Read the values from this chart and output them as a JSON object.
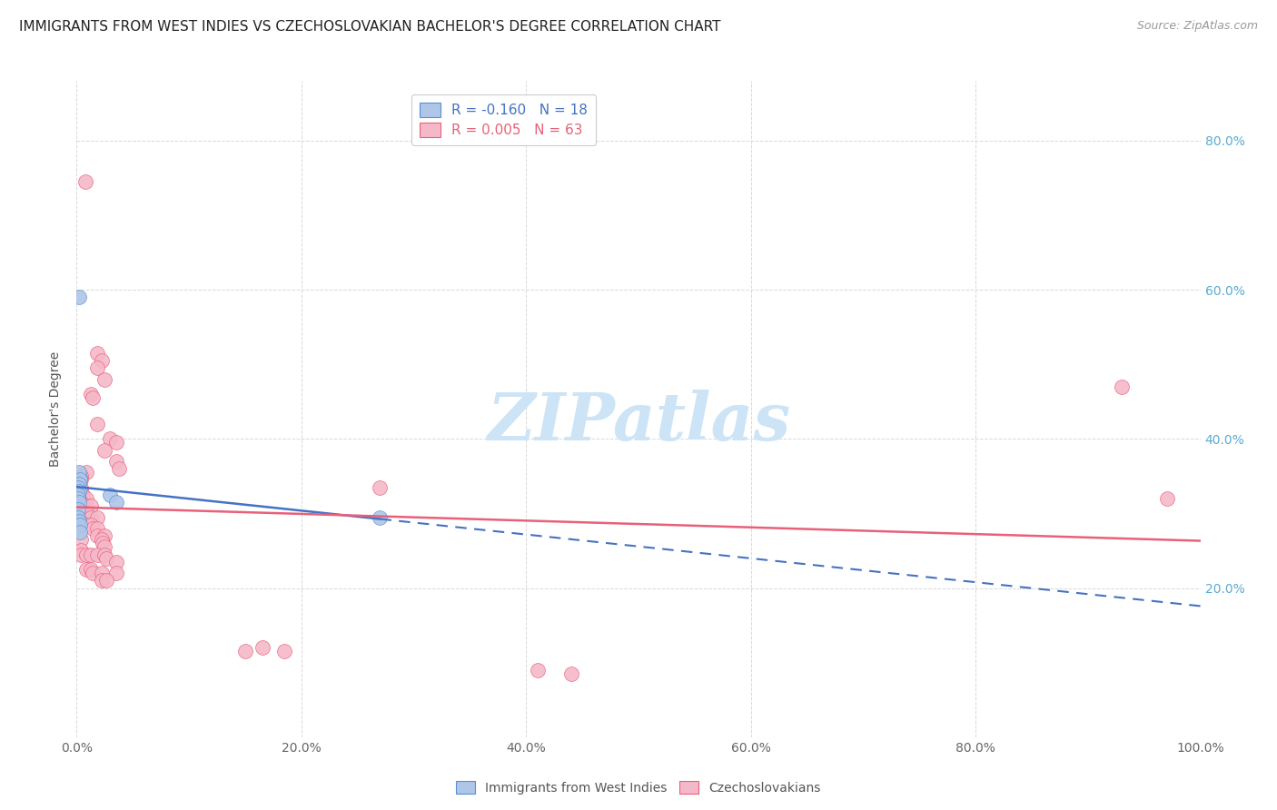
{
  "title": "IMMIGRANTS FROM WEST INDIES VS CZECHOSLOVAKIAN BACHELOR'S DEGREE CORRELATION CHART",
  "source": "Source: ZipAtlas.com",
  "ylabel": "Bachelor's Degree",
  "xlim": [
    0,
    1.0
  ],
  "ylim": [
    0,
    0.88
  ],
  "xtick_labels": [
    "0.0%",
    "20.0%",
    "40.0%",
    "60.0%",
    "80.0%",
    "100.0%"
  ],
  "xtick_vals": [
    0.0,
    0.2,
    0.4,
    0.6,
    0.8,
    1.0
  ],
  "ytick_vals": [
    0.0,
    0.2,
    0.4,
    0.6,
    0.8
  ],
  "ytick_labels_right": [
    "",
    "20.0%",
    "40.0%",
    "60.0%",
    "80.0%"
  ],
  "blue_R": "-0.160",
  "blue_N": "18",
  "pink_R": "0.005",
  "pink_N": "63",
  "blue_color": "#aec6e8",
  "pink_color": "#f5b8c8",
  "blue_edge_color": "#5b8fd4",
  "pink_edge_color": "#e8607a",
  "blue_line_color": "#4472c4",
  "pink_line_color": "#e8607a",
  "blue_dots": [
    [
      0.002,
      0.59
    ],
    [
      0.003,
      0.345
    ],
    [
      0.002,
      0.355
    ],
    [
      0.003,
      0.345
    ],
    [
      0.002,
      0.34
    ],
    [
      0.001,
      0.335
    ],
    [
      0.002,
      0.33
    ],
    [
      0.001,
      0.325
    ],
    [
      0.001,
      0.32
    ],
    [
      0.002,
      0.315
    ],
    [
      0.001,
      0.305
    ],
    [
      0.001,
      0.295
    ],
    [
      0.002,
      0.29
    ],
    [
      0.003,
      0.285
    ],
    [
      0.003,
      0.275
    ],
    [
      0.03,
      0.325
    ],
    [
      0.035,
      0.315
    ],
    [
      0.27,
      0.295
    ]
  ],
  "pink_dots": [
    [
      0.008,
      0.745
    ],
    [
      0.018,
      0.515
    ],
    [
      0.022,
      0.505
    ],
    [
      0.018,
      0.495
    ],
    [
      0.025,
      0.48
    ],
    [
      0.013,
      0.46
    ],
    [
      0.014,
      0.455
    ],
    [
      0.018,
      0.42
    ],
    [
      0.03,
      0.4
    ],
    [
      0.035,
      0.395
    ],
    [
      0.025,
      0.385
    ],
    [
      0.035,
      0.37
    ],
    [
      0.038,
      0.36
    ],
    [
      0.009,
      0.355
    ],
    [
      0.004,
      0.35
    ],
    [
      0.004,
      0.345
    ],
    [
      0.004,
      0.335
    ],
    [
      0.004,
      0.33
    ],
    [
      0.005,
      0.325
    ],
    [
      0.005,
      0.32
    ],
    [
      0.009,
      0.32
    ],
    [
      0.004,
      0.315
    ],
    [
      0.004,
      0.31
    ],
    [
      0.009,
      0.31
    ],
    [
      0.013,
      0.31
    ],
    [
      0.004,
      0.3
    ],
    [
      0.009,
      0.3
    ],
    [
      0.013,
      0.295
    ],
    [
      0.018,
      0.295
    ],
    [
      0.004,
      0.285
    ],
    [
      0.009,
      0.285
    ],
    [
      0.013,
      0.285
    ],
    [
      0.014,
      0.28
    ],
    [
      0.018,
      0.28
    ],
    [
      0.018,
      0.27
    ],
    [
      0.025,
      0.27
    ],
    [
      0.004,
      0.265
    ],
    [
      0.022,
      0.265
    ],
    [
      0.023,
      0.26
    ],
    [
      0.025,
      0.255
    ],
    [
      0.004,
      0.25
    ],
    [
      0.004,
      0.245
    ],
    [
      0.009,
      0.245
    ],
    [
      0.013,
      0.245
    ],
    [
      0.018,
      0.245
    ],
    [
      0.025,
      0.245
    ],
    [
      0.026,
      0.24
    ],
    [
      0.035,
      0.235
    ],
    [
      0.009,
      0.225
    ],
    [
      0.013,
      0.225
    ],
    [
      0.014,
      0.22
    ],
    [
      0.022,
      0.22
    ],
    [
      0.035,
      0.22
    ],
    [
      0.022,
      0.21
    ],
    [
      0.026,
      0.21
    ],
    [
      0.15,
      0.115
    ],
    [
      0.165,
      0.12
    ],
    [
      0.185,
      0.115
    ],
    [
      0.27,
      0.335
    ],
    [
      0.41,
      0.09
    ],
    [
      0.44,
      0.085
    ],
    [
      0.97,
      0.32
    ],
    [
      0.93,
      0.47
    ]
  ],
  "background_color": "#ffffff",
  "grid_color": "#d8d8d8",
  "title_fontsize": 11,
  "label_fontsize": 10,
  "tick_fontsize": 10,
  "legend_fontsize": 11,
  "source_fontsize": 9,
  "watermark_text": "ZIPatlas",
  "watermark_color": "#cce4f5",
  "legend_label_blue": "R = -0.160   N = 18",
  "legend_label_pink": "R = 0.005   N = 63",
  "bottom_legend_blue": "Immigrants from West Indies",
  "bottom_legend_pink": "Czechoslovakians"
}
